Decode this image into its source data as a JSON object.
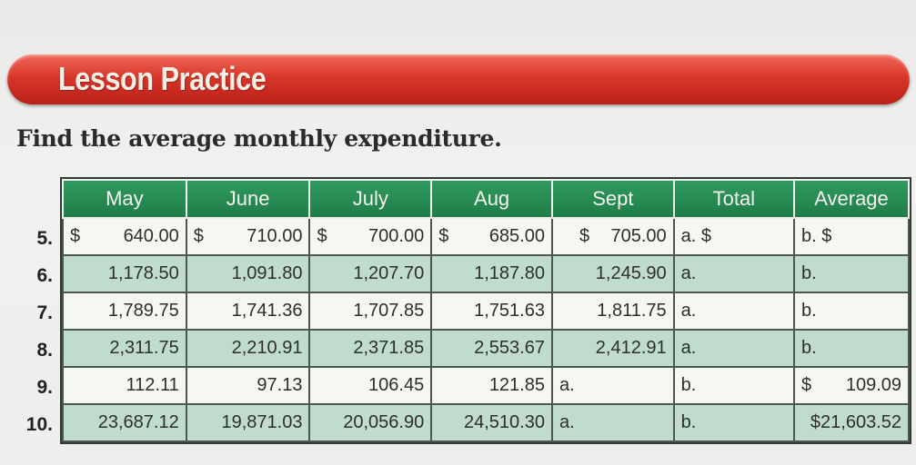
{
  "lesson": {
    "title": "Lesson Practice",
    "instruction": "Find the average monthly expenditure."
  },
  "table": {
    "headers": [
      "May",
      "June",
      "July",
      "Aug",
      "Sept",
      "Total",
      "Average"
    ],
    "row_numbers": [
      "5.",
      "6.",
      "7.",
      "8.",
      "9.",
      "10."
    ],
    "rows": [
      {
        "may": "640.00",
        "june": "710.00",
        "july": "700.00",
        "aug": "685.00",
        "sept": "705.00",
        "total": "a. $",
        "average": "b. $",
        "currency_sign": "$"
      },
      {
        "may": "1,178.50",
        "june": "1,091.80",
        "july": "1,207.70",
        "aug": "1,187.80",
        "sept": "1,245.90",
        "total": "a.",
        "average": "b."
      },
      {
        "may": "1,789.75",
        "june": "1,741.36",
        "july": "1,707.85",
        "aug": "1,751.63",
        "sept": "1,811.75",
        "total": "a.",
        "average": "b."
      },
      {
        "may": "2,311.75",
        "june": "2,210.91",
        "july": "2,371.85",
        "aug": "2,553.67",
        "sept": "2,412.91",
        "total": "a.",
        "average": "b."
      },
      {
        "may": "112.11",
        "june": "97.13",
        "july": "106.45",
        "aug": "121.85",
        "sept": "a.",
        "total": "b.",
        "average_sign": "$",
        "average": "109.09"
      },
      {
        "may": "23,687.12",
        "june": "19,871.03",
        "july": "20,056.90",
        "aug": "24,510.30",
        "sept": "a.",
        "total": "b.",
        "average": "$21,603.52"
      }
    ]
  },
  "colors": {
    "banner_red": "#d9362b",
    "header_green": "#23854d",
    "row_green": "#bfdccc",
    "row_light": "#f6f6f2"
  }
}
